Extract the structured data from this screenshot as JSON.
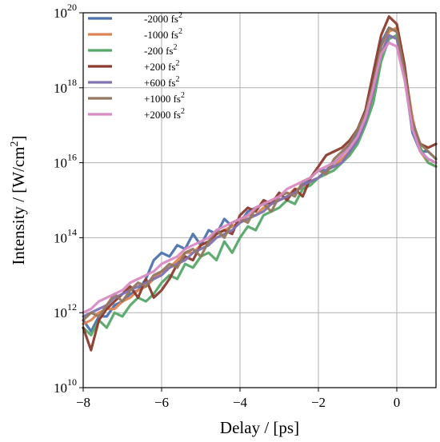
{
  "chart_data": {
    "type": "line",
    "xlabel": "Delay / [ps]",
    "ylabel": "Intensity / [W/cm²]",
    "ylabel_base": "Intensity / [W/cm",
    "ylabel_sup": "2",
    "ylabel_end": "]",
    "xlim": [
      -8,
      1
    ],
    "ylim": [
      10000000000.0,
      1e+20
    ],
    "y_scale": "log",
    "grid": true,
    "legend_position": "top-left",
    "x_ticks": [
      -8,
      -6,
      -4,
      -2,
      0
    ],
    "x_tick_labels": [
      "−8",
      "−6",
      "−4",
      "−2",
      "0"
    ],
    "y_ticks": [
      {
        "value": 10000000000.0,
        "base": "10",
        "exp": "10"
      },
      {
        "value": 1000000000000.0,
        "base": "10",
        "exp": "12"
      },
      {
        "value": 100000000000000.0,
        "base": "10",
        "exp": "14"
      },
      {
        "value": 1e+16,
        "base": "10",
        "exp": "16"
      },
      {
        "value": 1e+18,
        "base": "10",
        "exp": "18"
      },
      {
        "value": 1e+20,
        "base": "10",
        "exp": "20"
      }
    ],
    "x": [
      -8.0,
      -7.8,
      -7.6,
      -7.4,
      -7.2,
      -7.0,
      -6.8,
      -6.6,
      -6.4,
      -6.2,
      -6.0,
      -5.8,
      -5.6,
      -5.4,
      -5.2,
      -5.0,
      -4.8,
      -4.6,
      -4.4,
      -4.2,
      -4.0,
      -3.8,
      -3.6,
      -3.4,
      -3.2,
      -3.0,
      -2.8,
      -2.6,
      -2.4,
      -2.2,
      -2.0,
      -1.8,
      -1.6,
      -1.4,
      -1.2,
      -1.0,
      -0.8,
      -0.6,
      -0.4,
      -0.2,
      0.0,
      0.2,
      0.4,
      0.6,
      0.8,
      1.0
    ],
    "series": [
      {
        "name": "-2000 fs",
        "exp": "2",
        "color": "#4c72b0",
        "log_values": [
          11.8,
          11.5,
          11.9,
          11.9,
          12.2,
          12.3,
          12.5,
          12.6,
          12.9,
          13.4,
          13.6,
          13.5,
          13.8,
          13.7,
          14.1,
          13.8,
          14.2,
          14.1,
          14.5,
          14.3,
          14.4,
          14.7,
          14.8,
          14.9,
          14.9,
          15.0,
          15.1,
          15.2,
          15.4,
          15.6,
          15.8,
          15.8,
          16.0,
          16.2,
          16.5,
          16.8,
          17.3,
          18.2,
          19.2,
          19.6,
          19.5,
          18.3,
          16.8,
          16.3,
          16.3,
          16.1
        ]
      },
      {
        "name": "-1000 fs",
        "exp": "2",
        "color": "#dd8452",
        "log_values": [
          11.7,
          11.8,
          12.0,
          12.1,
          12.1,
          12.3,
          12.4,
          12.6,
          12.7,
          12.9,
          13.1,
          13.2,
          13.4,
          13.6,
          13.6,
          13.8,
          13.9,
          14.1,
          14.2,
          14.3,
          14.4,
          14.6,
          14.6,
          14.8,
          14.9,
          15.0,
          15.1,
          15.3,
          15.3,
          15.5,
          15.6,
          15.8,
          15.9,
          16.1,
          16.3,
          16.6,
          17.1,
          17.8,
          18.8,
          19.5,
          19.6,
          18.5,
          17.2,
          16.3,
          16.0,
          15.9
        ]
      },
      {
        "name": "-200 fs",
        "exp": "2",
        "color": "#55a868",
        "log_values": [
          11.6,
          11.4,
          11.8,
          11.6,
          12.0,
          11.9,
          12.2,
          12.4,
          12.3,
          12.5,
          12.8,
          13.0,
          12.9,
          13.3,
          13.2,
          13.5,
          13.6,
          13.4,
          13.9,
          13.6,
          14.0,
          14.3,
          14.2,
          14.6,
          14.7,
          14.8,
          15.0,
          14.9,
          15.3,
          15.4,
          15.6,
          15.7,
          15.8,
          16.0,
          16.2,
          16.5,
          17.0,
          17.6,
          18.7,
          19.3,
          19.4,
          18.4,
          17.0,
          16.4,
          16.0,
          15.9
        ]
      },
      {
        "name": "+200 fs",
        "exp": "2",
        "color": "#8c3b2e",
        "log_values": [
          11.6,
          11.0,
          11.8,
          12.1,
          12.3,
          12.5,
          12.7,
          12.4,
          12.9,
          12.4,
          12.6,
          12.9,
          13.3,
          13.5,
          13.4,
          13.8,
          13.9,
          14.1,
          14.2,
          14.1,
          14.6,
          14.8,
          14.7,
          15.0,
          14.9,
          15.2,
          15.0,
          15.3,
          15.1,
          15.6,
          15.9,
          16.2,
          16.3,
          16.4,
          16.6,
          16.9,
          17.4,
          18.4,
          19.4,
          19.9,
          19.7,
          18.6,
          17.0,
          16.5,
          16.4,
          16.5
        ]
      },
      {
        "name": "+600 fs",
        "exp": "2",
        "color": "#8172b2",
        "log_values": [
          11.9,
          12.0,
          12.1,
          12.2,
          12.4,
          12.5,
          12.6,
          12.7,
          12.8,
          12.9,
          13.0,
          13.2,
          13.3,
          13.4,
          13.6,
          13.7,
          13.8,
          14.0,
          14.1,
          14.2,
          14.4,
          14.5,
          14.6,
          14.7,
          14.9,
          15.0,
          15.1,
          15.2,
          15.4,
          15.5,
          15.6,
          15.8,
          15.9,
          16.0,
          16.3,
          16.6,
          17.1,
          17.9,
          18.9,
          19.4,
          19.3,
          18.3,
          16.9,
          16.3,
          16.1,
          16.0
        ]
      },
      {
        "name": "+1000 fs",
        "exp": "2",
        "color": "#937860",
        "log_values": [
          11.8,
          12.0,
          11.9,
          12.2,
          12.5,
          12.3,
          12.6,
          12.8,
          12.7,
          13.0,
          13.1,
          13.3,
          13.2,
          13.6,
          13.7,
          13.5,
          13.9,
          14.2,
          14.0,
          14.4,
          14.5,
          14.4,
          14.8,
          14.9,
          14.7,
          15.1,
          15.2,
          15.1,
          15.5,
          15.6,
          15.8,
          15.7,
          16.1,
          16.3,
          16.5,
          16.9,
          17.3,
          18.1,
          19.1,
          19.6,
          19.5,
          18.4,
          17.1,
          16.5,
          16.3,
          16.1
        ]
      },
      {
        "name": "+2000 fs",
        "exp": "2",
        "color": "#da8bc3",
        "log_values": [
          12.0,
          12.1,
          12.3,
          12.4,
          12.5,
          12.6,
          12.8,
          12.9,
          13.0,
          13.1,
          13.3,
          13.4,
          13.5,
          13.7,
          13.8,
          13.9,
          14.0,
          14.2,
          14.3,
          14.4,
          14.5,
          14.6,
          14.8,
          14.9,
          15.0,
          15.1,
          15.3,
          15.4,
          15.5,
          15.6,
          15.8,
          15.9,
          16.0,
          16.2,
          16.4,
          16.7,
          17.2,
          18.0,
          18.9,
          19.2,
          19.1,
          18.2,
          16.9,
          16.3,
          16.1,
          16.0
        ]
      }
    ]
  }
}
